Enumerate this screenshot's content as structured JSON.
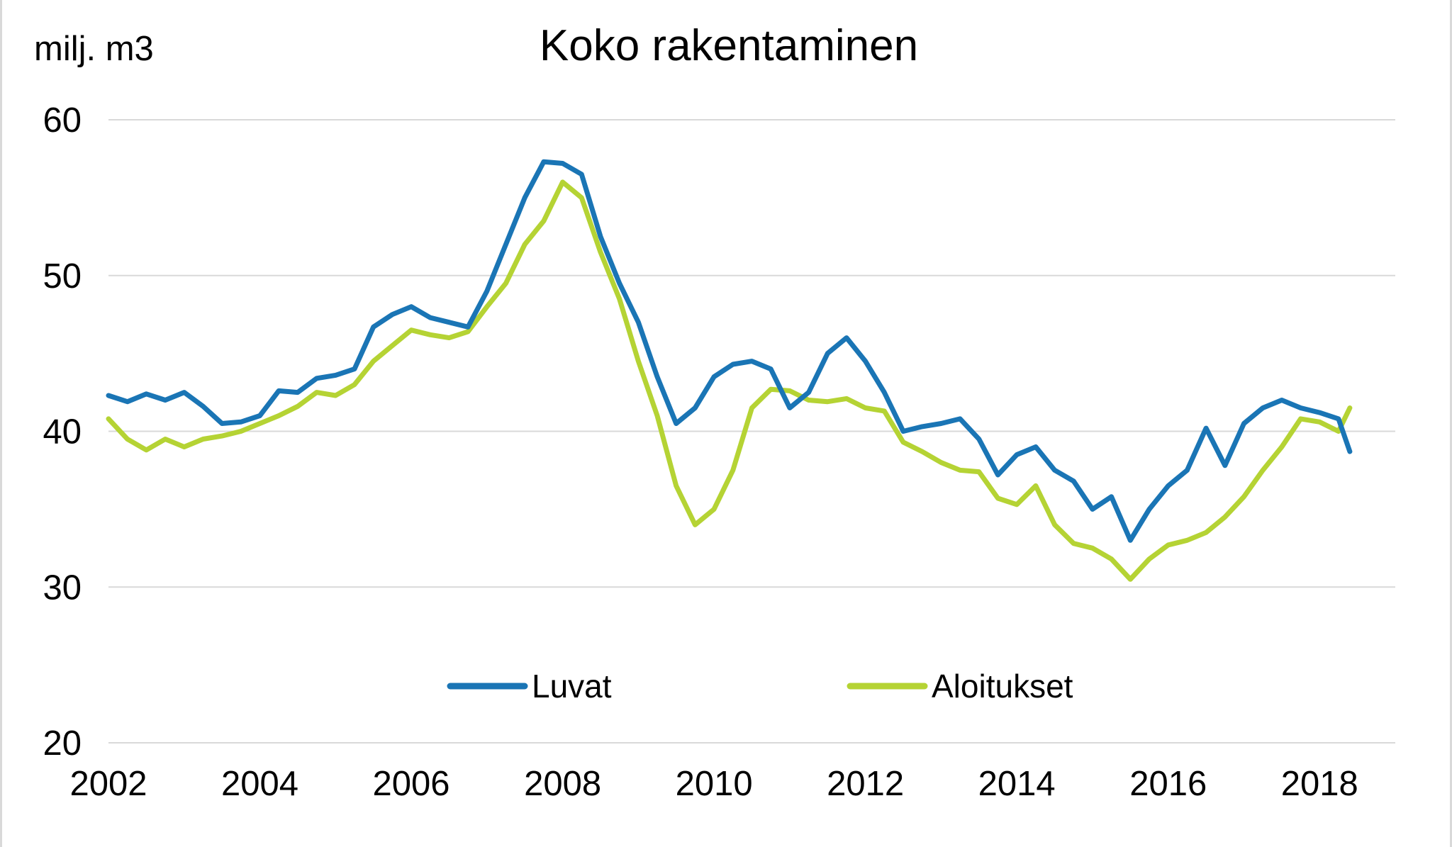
{
  "chart_data": {
    "type": "line",
    "title": "Koko rakentaminen",
    "ylabel": "milj. m3",
    "xlabel": "",
    "ylim": [
      20,
      60
    ],
    "yticks": [
      "20",
      "30",
      "40",
      "50",
      "60"
    ],
    "xlim": [
      2002,
      2019
    ],
    "xticks": [
      "2002",
      "2004",
      "2006",
      "2008",
      "2010",
      "2012",
      "2014",
      "2016",
      "2018"
    ],
    "grid": "horizontal",
    "legend_position": "bottom-center",
    "series": [
      {
        "name": "Luvat",
        "color": "#1a75b5",
        "points": [
          [
            2002.0,
            42.3
          ],
          [
            2002.25,
            41.9
          ],
          [
            2002.5,
            42.4
          ],
          [
            2002.75,
            42.0
          ],
          [
            2003.0,
            42.5
          ],
          [
            2003.25,
            41.6
          ],
          [
            2003.5,
            40.5
          ],
          [
            2003.75,
            40.6
          ],
          [
            2004.0,
            41.0
          ],
          [
            2004.25,
            42.6
          ],
          [
            2004.5,
            42.5
          ],
          [
            2004.75,
            43.4
          ],
          [
            2005.0,
            43.6
          ],
          [
            2005.25,
            44.0
          ],
          [
            2005.5,
            46.7
          ],
          [
            2005.75,
            47.5
          ],
          [
            2006.0,
            48.0
          ],
          [
            2006.25,
            47.3
          ],
          [
            2006.5,
            47.0
          ],
          [
            2006.75,
            46.7
          ],
          [
            2007.0,
            49.0
          ],
          [
            2007.25,
            52.0
          ],
          [
            2007.5,
            55.0
          ],
          [
            2007.75,
            57.3
          ],
          [
            2008.0,
            57.2
          ],
          [
            2008.25,
            56.5
          ],
          [
            2008.5,
            52.5
          ],
          [
            2008.75,
            49.5
          ],
          [
            2009.0,
            47.0
          ],
          [
            2009.25,
            43.5
          ],
          [
            2009.5,
            40.5
          ],
          [
            2009.75,
            41.5
          ],
          [
            2010.0,
            43.5
          ],
          [
            2010.25,
            44.3
          ],
          [
            2010.5,
            44.5
          ],
          [
            2010.75,
            44.0
          ],
          [
            2011.0,
            41.5
          ],
          [
            2011.25,
            42.5
          ],
          [
            2011.5,
            45.0
          ],
          [
            2011.75,
            46.0
          ],
          [
            2012.0,
            44.5
          ],
          [
            2012.25,
            42.5
          ],
          [
            2012.5,
            40.0
          ],
          [
            2012.75,
            40.3
          ],
          [
            2013.0,
            40.5
          ],
          [
            2013.25,
            40.8
          ],
          [
            2013.5,
            39.5
          ],
          [
            2013.75,
            37.2
          ],
          [
            2014.0,
            38.5
          ],
          [
            2014.25,
            39.0
          ],
          [
            2014.5,
            37.5
          ],
          [
            2014.75,
            36.8
          ],
          [
            2015.0,
            35.0
          ],
          [
            2015.25,
            35.8
          ],
          [
            2015.5,
            33.0
          ],
          [
            2015.75,
            35.0
          ],
          [
            2016.0,
            36.5
          ],
          [
            2016.25,
            37.5
          ],
          [
            2016.5,
            40.2
          ],
          [
            2016.75,
            37.8
          ],
          [
            2017.0,
            40.5
          ],
          [
            2017.25,
            41.5
          ],
          [
            2017.5,
            42.0
          ],
          [
            2017.75,
            41.5
          ],
          [
            2018.0,
            41.2
          ],
          [
            2018.25,
            40.8
          ],
          [
            2018.4,
            38.7
          ]
        ]
      },
      {
        "name": "Aloitukset",
        "color": "#b5d334",
        "points": [
          [
            2002.0,
            40.8
          ],
          [
            2002.25,
            39.5
          ],
          [
            2002.5,
            38.8
          ],
          [
            2002.75,
            39.5
          ],
          [
            2003.0,
            39.0
          ],
          [
            2003.25,
            39.5
          ],
          [
            2003.5,
            39.7
          ],
          [
            2003.75,
            40.0
          ],
          [
            2004.0,
            40.5
          ],
          [
            2004.25,
            41.0
          ],
          [
            2004.5,
            41.6
          ],
          [
            2004.75,
            42.5
          ],
          [
            2005.0,
            42.3
          ],
          [
            2005.25,
            43.0
          ],
          [
            2005.5,
            44.5
          ],
          [
            2005.75,
            45.5
          ],
          [
            2006.0,
            46.5
          ],
          [
            2006.25,
            46.2
          ],
          [
            2006.5,
            46.0
          ],
          [
            2006.75,
            46.4
          ],
          [
            2007.0,
            48.0
          ],
          [
            2007.25,
            49.5
          ],
          [
            2007.5,
            52.0
          ],
          [
            2007.75,
            53.5
          ],
          [
            2008.0,
            56.0
          ],
          [
            2008.25,
            55.0
          ],
          [
            2008.5,
            51.5
          ],
          [
            2008.75,
            48.5
          ],
          [
            2009.0,
            44.5
          ],
          [
            2009.25,
            41.0
          ],
          [
            2009.5,
            36.5
          ],
          [
            2009.75,
            34.0
          ],
          [
            2010.0,
            35.0
          ],
          [
            2010.25,
            37.5
          ],
          [
            2010.5,
            41.5
          ],
          [
            2010.75,
            42.7
          ],
          [
            2011.0,
            42.6
          ],
          [
            2011.25,
            42.0
          ],
          [
            2011.5,
            41.9
          ],
          [
            2011.75,
            42.1
          ],
          [
            2012.0,
            41.5
          ],
          [
            2012.25,
            41.3
          ],
          [
            2012.5,
            39.3
          ],
          [
            2012.75,
            38.7
          ],
          [
            2013.0,
            38.0
          ],
          [
            2013.25,
            37.5
          ],
          [
            2013.5,
            37.4
          ],
          [
            2013.75,
            35.7
          ],
          [
            2014.0,
            35.3
          ],
          [
            2014.25,
            36.5
          ],
          [
            2014.5,
            34.0
          ],
          [
            2014.75,
            32.8
          ],
          [
            2015.0,
            32.5
          ],
          [
            2015.25,
            31.8
          ],
          [
            2015.5,
            30.5
          ],
          [
            2015.75,
            31.8
          ],
          [
            2016.0,
            32.7
          ],
          [
            2016.25,
            33.0
          ],
          [
            2016.5,
            33.5
          ],
          [
            2016.75,
            34.5
          ],
          [
            2017.0,
            35.8
          ],
          [
            2017.25,
            37.5
          ],
          [
            2017.5,
            39.0
          ],
          [
            2017.75,
            40.8
          ],
          [
            2018.0,
            40.6
          ],
          [
            2018.25,
            40.0
          ],
          [
            2018.4,
            41.5
          ]
        ]
      }
    ]
  }
}
